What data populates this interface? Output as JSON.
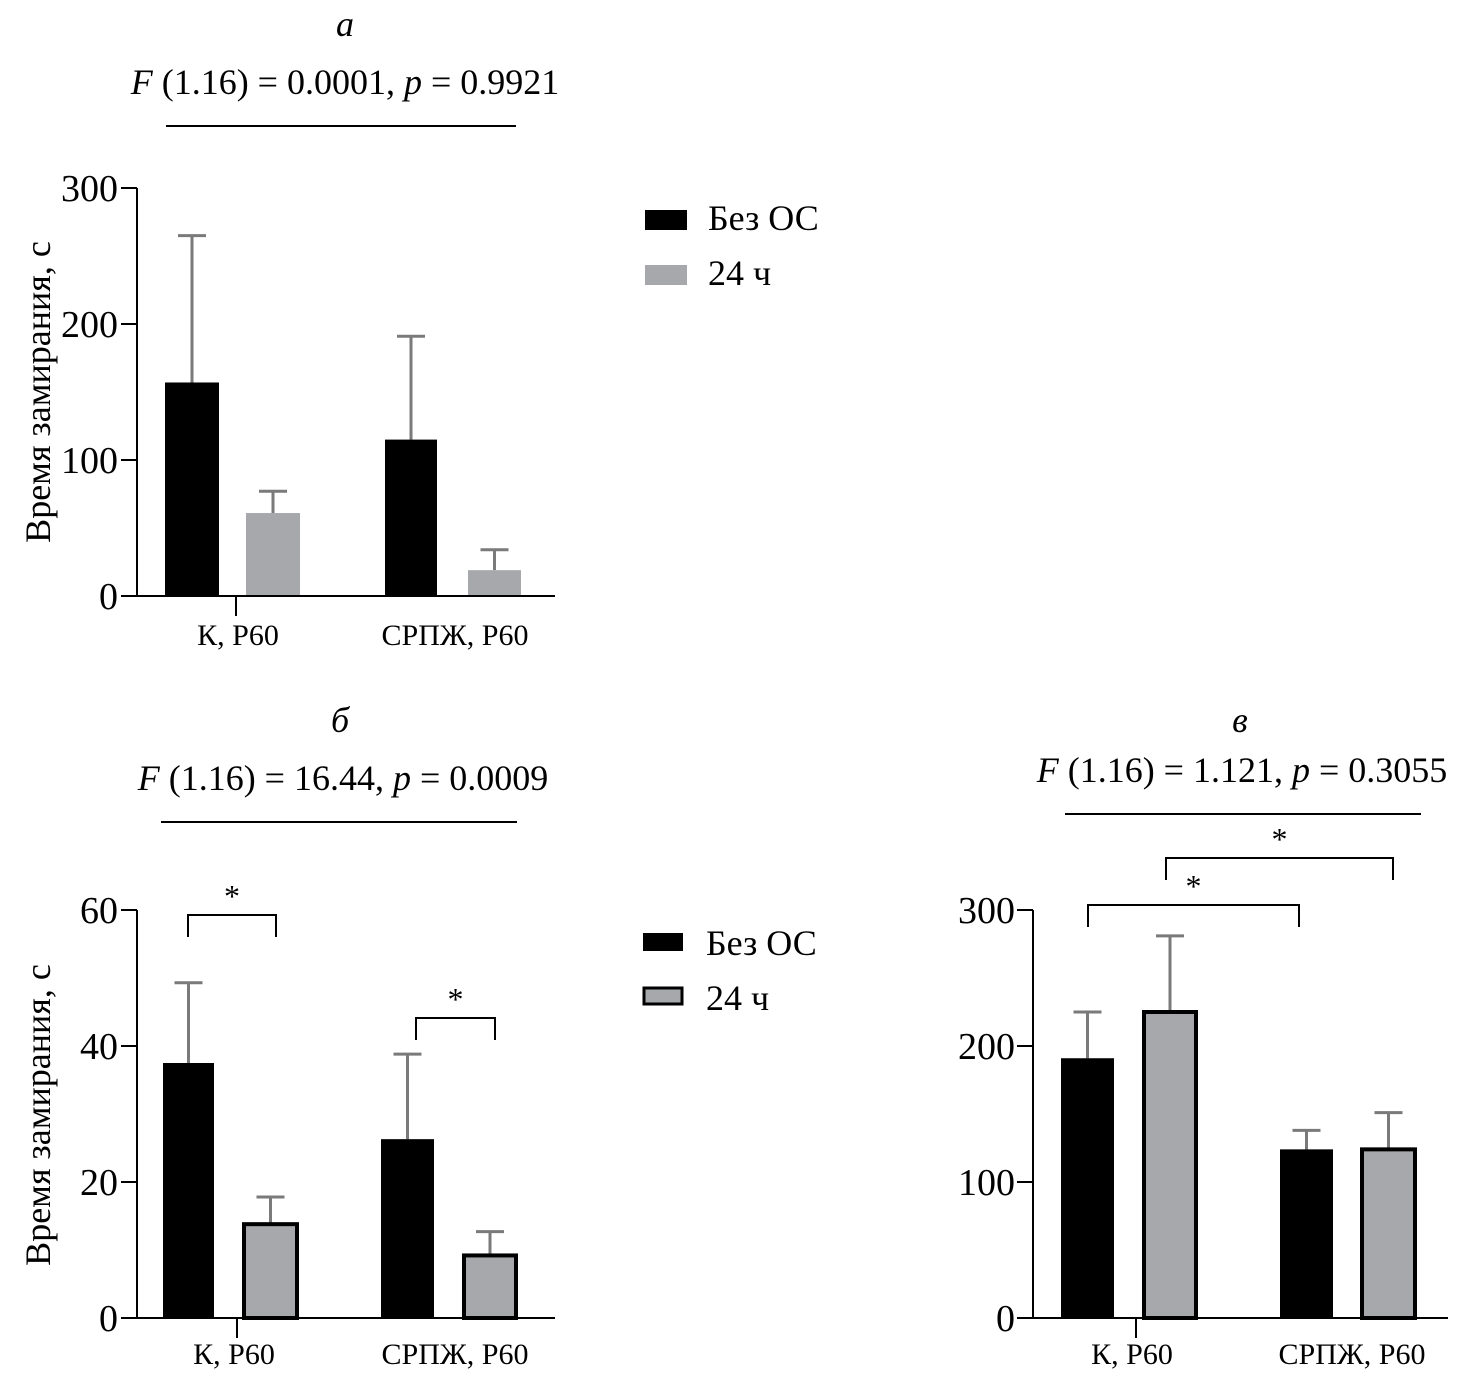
{
  "colors": {
    "series_black": "#000000",
    "series_gray": "#a6a8ab",
    "axis": "#000000",
    "errorbar": "#7a7a7a"
  },
  "panels": [
    {
      "letter": "а",
      "stat": {
        "F": "F",
        "args": " (1.16) = 0.0001, ",
        "p": "p",
        "rest": " = 0.9921"
      }
    },
    {
      "letter": "б",
      "stat": {
        "F": "F",
        "args": " (1.16) = 16.44, ",
        "p": "p",
        "rest": " = 0.0009"
      }
    },
    {
      "letter": "в",
      "stat": {
        "F": "F",
        "args": " (1.16) = 1.121, ",
        "p": "p",
        "rest": " = 0.3055"
      }
    }
  ],
  "legend": {
    "items": [
      "Без ОС",
      "24 ч"
    ]
  },
  "chart_data": [
    {
      "type": "bar",
      "panel": "а",
      "categories": [
        "К, Р60",
        "СРПЖ, Р60"
      ],
      "series": [
        {
          "name": "Без ОС",
          "values": [
            157,
            115
          ],
          "errors": [
            108,
            76
          ]
        },
        {
          "name": "24 ч",
          "values": [
            61,
            19
          ],
          "errors": [
            16,
            15
          ]
        }
      ],
      "ylabel": "Время замирания, с",
      "ylim": [
        0,
        300
      ],
      "yticks": [
        "0",
        "100",
        "200",
        "300"
      ],
      "grid": false,
      "legend_position": "right",
      "significance": []
    },
    {
      "type": "bar",
      "panel": "б",
      "categories": [
        "К, Р60",
        "СРПЖ, Р60"
      ],
      "series": [
        {
          "name": "Без ОС",
          "values": [
            37.5,
            26.3
          ],
          "errors": [
            11.8,
            12.5
          ]
        },
        {
          "name": "24 ч",
          "values": [
            13.8,
            9.2
          ],
          "errors": [
            4.0,
            3.5
          ]
        }
      ],
      "ylabel": "Время замирания, с",
      "ylim": [
        0,
        60
      ],
      "yticks": [
        "0",
        "20",
        "40",
        "60"
      ],
      "grid": false,
      "legend_position": "right",
      "significance": [
        {
          "from": [
            0,
            0
          ],
          "to": [
            0,
            1
          ],
          "label": "*"
        },
        {
          "from": [
            1,
            0
          ],
          "to": [
            1,
            1
          ],
          "label": "*"
        }
      ]
    },
    {
      "type": "bar",
      "panel": "в",
      "categories": [
        "К, Р60",
        "СРПЖ, Р60"
      ],
      "series": [
        {
          "name": "Без ОС",
          "values": [
            191,
            124
          ],
          "errors": [
            34,
            14
          ]
        },
        {
          "name": "24 ч",
          "values": [
            225,
            124
          ],
          "errors": [
            56,
            27
          ]
        }
      ],
      "ylabel": "",
      "ylim": [
        0,
        300
      ],
      "yticks": [
        "0",
        "100",
        "200",
        "300"
      ],
      "grid": false,
      "legend_position": "none",
      "significance": [
        {
          "from": [
            0,
            0
          ],
          "to": [
            1,
            0
          ],
          "label": "*"
        },
        {
          "from": [
            0,
            1
          ],
          "to": [
            1,
            1
          ],
          "label": "*"
        }
      ]
    }
  ]
}
